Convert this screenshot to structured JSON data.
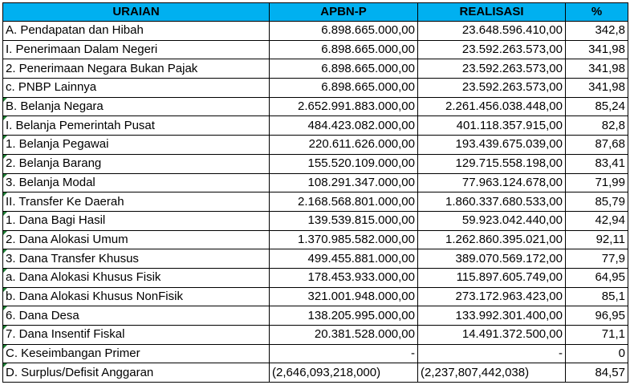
{
  "header": {
    "uraian": "URAIAN",
    "apbn": "APBN-P",
    "realisasi": "REALISASI",
    "percent": "%"
  },
  "rows": [
    {
      "label": "A. Pendapatan dan Hibah",
      "apbn": "6.898.665.000,00",
      "realisasi": "23.648.596.410,00",
      "pct": "342,8",
      "level": 0,
      "mark": false
    },
    {
      "label": "I. Penerimaan Dalam Negeri",
      "apbn": "6.898.665.000,00",
      "realisasi": "23.592.263.573,00",
      "pct": "341,98",
      "level": 1,
      "mark": false
    },
    {
      "label": "2. Penerimaan Negara Bukan Pajak",
      "apbn": "6.898.665.000,00",
      "realisasi": "23.592.263.573,00",
      "pct": "341,98",
      "level": 2,
      "mark": false
    },
    {
      "label": "c. PNBP Lainnya",
      "apbn": "6.898.665.000,00",
      "realisasi": "23.592.263.573,00",
      "pct": "341,98",
      "level": 3,
      "mark": false
    },
    {
      "label": "B. Belanja Negara",
      "apbn": "2.652.991.883.000,00",
      "realisasi": "2.261.456.038.448,00",
      "pct": "85,24",
      "level": 0,
      "mark": true
    },
    {
      "label": "I. Belanja Pemerintah Pusat",
      "apbn": "484.423.082.000,00",
      "realisasi": "401.118.357.915,00",
      "pct": "82,8",
      "level": 1,
      "mark": true
    },
    {
      "label": "1. Belanja Pegawai",
      "apbn": "220.611.626.000,00",
      "realisasi": "193.439.675.039,00",
      "pct": "87,68",
      "level": 2,
      "mark": true
    },
    {
      "label": "2. Belanja Barang",
      "apbn": "155.520.109.000,00",
      "realisasi": "129.715.558.198,00",
      "pct": "83,41",
      "level": 2,
      "mark": true
    },
    {
      "label": "3. Belanja Modal",
      "apbn": "108.291.347.000,00",
      "realisasi": "77.963.124.678,00",
      "pct": "71,99",
      "level": 2,
      "mark": true
    },
    {
      "label": "II. Transfer Ke Daerah",
      "apbn": "2.168.568.801.000,00",
      "realisasi": "1.860.337.680.533,00",
      "pct": "85,79",
      "level": 1,
      "mark": true
    },
    {
      "label": "1. Dana Bagi Hasil",
      "apbn": "139.539.815.000,00",
      "realisasi": "59.923.042.440,00",
      "pct": "42,94",
      "level": 2,
      "mark": true
    },
    {
      "label": "2. Dana Alokasi Umum",
      "apbn": "1.370.985.582.000,00",
      "realisasi": "1.262.860.395.021,00",
      "pct": "92,11",
      "level": 2,
      "mark": true
    },
    {
      "label": "3. Dana Transfer Khusus",
      "apbn": "499.455.881.000,00",
      "realisasi": "389.070.569.172,00",
      "pct": "77,9",
      "level": 2,
      "mark": true
    },
    {
      "label": "a. Dana Alokasi Khusus Fisik",
      "apbn": "178.453.933.000,00",
      "realisasi": "115.897.605.749,00",
      "pct": "64,95",
      "level": 3,
      "mark": true
    },
    {
      "label": "b. Dana Alokasi Khusus NonFisik",
      "apbn": "321.001.948.000,00",
      "realisasi": "273.172.963.423,00",
      "pct": "85,1",
      "level": 3,
      "mark": true
    },
    {
      "label": "6. Dana Desa",
      "apbn": "138.205.995.000,00",
      "realisasi": "133.992.301.400,00",
      "pct": "96,95",
      "level": 2,
      "mark": true
    },
    {
      "label": "7. Dana Insentif Fiskal",
      "apbn": "20.381.528.000,00",
      "realisasi": "14.491.372.500,00",
      "pct": "71,1",
      "level": 2,
      "mark": true
    },
    {
      "label": "C. Keseimbangan Primer",
      "apbn": "-",
      "realisasi": "-",
      "pct": "0",
      "level": 0,
      "mark": true,
      "style": "dash"
    },
    {
      "label": "D. Surplus/Defisit Anggaran",
      "apbn": "(2,646,093,218,000)",
      "realisasi": "(2,237,807,442,038)",
      "pct": "84,57",
      "level": 0,
      "mark": true,
      "style": "fin"
    }
  ]
}
